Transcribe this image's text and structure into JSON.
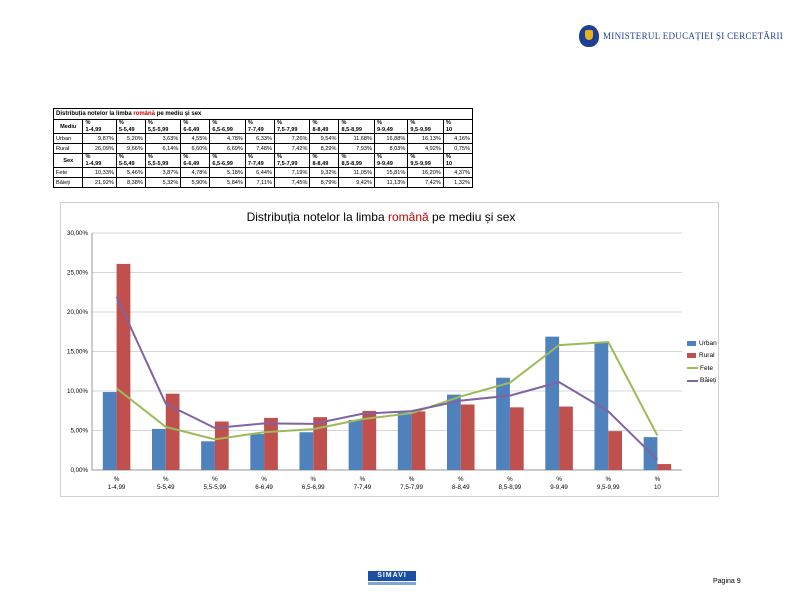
{
  "header": {
    "ministry": "MINISTERUL EDUCAȚIEI ȘI CERCETĂRII"
  },
  "table": {
    "title_pre": "Distribuția notelor la limba ",
    "title_hl": "română",
    "title_post": " pe mediu și sex",
    "columns": [
      "%\n1-4,99",
      "%\n5-5,49",
      "%\n5,5-5,99",
      "%\n6-6,49",
      "%\n6,5-6,99",
      "%\n7-7,49",
      "%\n7,5-7,99",
      "%\n8-8,49",
      "%\n8,5-8,99",
      "%\n9-9,49",
      "%\n9,5-9,99",
      "%\n10"
    ],
    "section1_label": "Mediu",
    "section2_label": "Sex",
    "rows1": [
      {
        "label": "Urban",
        "values": [
          "9,87%",
          "5,20%",
          "3,63%",
          "4,55%",
          "4,78%",
          "6,33%",
          "7,26%",
          "9,54%",
          "11,68%",
          "16,88%",
          "16,13%",
          "4,16%"
        ]
      },
      {
        "label": "Rural",
        "values": [
          "26,09%",
          "9,66%",
          "6,14%",
          "6,60%",
          "6,69%",
          "7,48%",
          "7,42%",
          "8,29%",
          "7,93%",
          "8,03%",
          "4,92%",
          "0,75%"
        ]
      }
    ],
    "rows2": [
      {
        "label": "Fete",
        "values": [
          "10,33%",
          "5,46%",
          "3,87%",
          "4,78%",
          "5,18%",
          "6,44%",
          "7,19%",
          "9,32%",
          "11,05%",
          "15,81%",
          "16,20%",
          "4,37%"
        ]
      },
      {
        "label": "Băieți",
        "values": [
          "21,92%",
          "8,38%",
          "5,32%",
          "5,90%",
          "5,84%",
          "7,11%",
          "7,45%",
          "8,79%",
          "9,42%",
          "11,13%",
          "7,42%",
          "1,32%"
        ]
      }
    ]
  },
  "chart_data": {
    "type": "bar",
    "title_pre": "Distribuția notelor la limba ",
    "title_hl": "română",
    "title_post": " pe mediu și sex",
    "categories": [
      "%\n1-4,99",
      "%\n5-5,49",
      "%\n5,5-5,99",
      "%\n6-6,49",
      "%\n6,5-6,99",
      "%\n7-7,49",
      "%\n7,5-7,99",
      "%\n8-8,49",
      "%\n8,5-8,99",
      "%\n9-9,49",
      "%\n9,5-9,99",
      "%\n10"
    ],
    "ylim": [
      0,
      30
    ],
    "yticks": [
      "0,00%",
      "5,00%",
      "10,00%",
      "15,00%",
      "20,00%",
      "25,00%",
      "30,00%"
    ],
    "grid": true,
    "legend_position": "right",
    "series": [
      {
        "name": "Urban",
        "kind": "bar",
        "color": "#4f81bd",
        "values": [
          9.87,
          5.2,
          3.63,
          4.55,
          4.78,
          6.33,
          7.26,
          9.54,
          11.68,
          16.88,
          16.13,
          4.16
        ]
      },
      {
        "name": "Rural",
        "kind": "bar",
        "color": "#c0504d",
        "values": [
          26.09,
          9.66,
          6.14,
          6.6,
          6.69,
          7.48,
          7.42,
          8.29,
          7.93,
          8.03,
          4.92,
          0.75
        ]
      },
      {
        "name": "Fete",
        "kind": "line",
        "color": "#9bbb59",
        "values": [
          10.33,
          5.46,
          3.87,
          4.78,
          5.18,
          6.44,
          7.19,
          9.32,
          11.05,
          15.81,
          16.2,
          4.37
        ]
      },
      {
        "name": "Băieți",
        "kind": "line",
        "color": "#8064a2",
        "values": [
          21.92,
          8.38,
          5.32,
          5.9,
          5.84,
          7.11,
          7.45,
          8.79,
          9.42,
          11.13,
          7.42,
          1.32
        ]
      }
    ]
  },
  "footer": {
    "logo": "SIMAVI",
    "page": "Pagina 9"
  }
}
